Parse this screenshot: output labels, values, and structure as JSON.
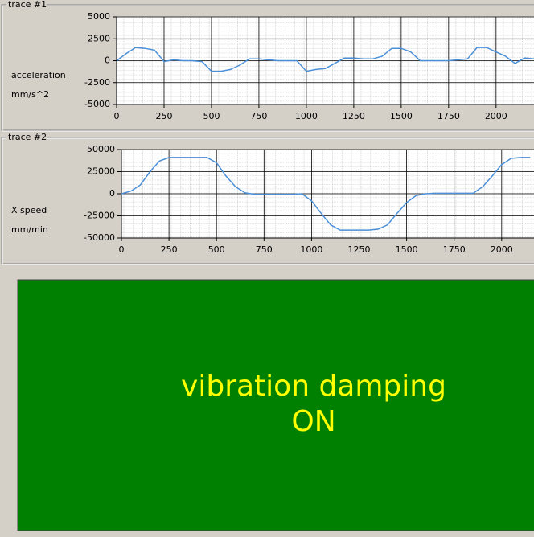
{
  "chart_data": [
    {
      "type": "line",
      "title": "trace #1",
      "ylabel": "acceleration",
      "yunit": "mm/s^2",
      "x": [
        0,
        50,
        100,
        150,
        200,
        250,
        300,
        350,
        400,
        450,
        500,
        550,
        600,
        650,
        700,
        750,
        800,
        850,
        900,
        950,
        1000,
        1050,
        1100,
        1150,
        1200,
        1250,
        1300,
        1350,
        1400,
        1450,
        1500,
        1550,
        1600,
        1650,
        1700,
        1750,
        1800,
        1850,
        1900,
        1950,
        2000,
        2050,
        2100,
        2150,
        2200
      ],
      "series": [
        {
          "color": "#4a8fd8",
          "values": [
            0,
            800,
            1500,
            1400,
            1200,
            -100,
            100,
            0,
            0,
            -100,
            -1200,
            -1200,
            -1000,
            -500,
            200,
            200,
            100,
            0,
            0,
            0,
            -1200,
            -1000,
            -900,
            -300,
            300,
            300,
            200,
            200,
            500,
            1400,
            1400,
            1000,
            0,
            0,
            0,
            0,
            100,
            200,
            1500,
            1500,
            1000,
            500,
            -300,
            300,
            200
          ]
        }
      ],
      "xlim": [
        0,
        2200
      ],
      "xticks": [
        0,
        250,
        500,
        750,
        1000,
        1250,
        1500,
        1750,
        2000
      ],
      "ylim": [
        -5000,
        5000
      ],
      "yticks": [
        5000,
        2500,
        0,
        -2500,
        -5000
      ],
      "grid": true
    },
    {
      "type": "line",
      "title": "trace #2",
      "ylabel": "X speed",
      "yunit": "mm/min",
      "x": [
        0,
        50,
        100,
        150,
        200,
        250,
        300,
        350,
        400,
        450,
        500,
        550,
        600,
        650,
        700,
        750,
        800,
        850,
        900,
        950,
        1000,
        1050,
        1100,
        1150,
        1200,
        1250,
        1300,
        1350,
        1400,
        1450,
        1500,
        1550,
        1600,
        1650,
        1700,
        1750,
        1800,
        1850,
        1900,
        1950,
        2000,
        2050,
        2100,
        2150
      ],
      "series": [
        {
          "color": "#4a8fd8",
          "values": [
            0,
            3000,
            10000,
            25000,
            37000,
            41000,
            41000,
            41000,
            41000,
            41000,
            35000,
            20000,
            8000,
            1000,
            -500,
            -500,
            -500,
            -500,
            -500,
            0,
            -8000,
            -22000,
            -35000,
            -41000,
            -41000,
            -41000,
            -41000,
            -40000,
            -35000,
            -22000,
            -10000,
            -2000,
            0,
            500,
            500,
            500,
            500,
            500,
            8000,
            20000,
            33000,
            40000,
            41000,
            41000
          ]
        }
      ],
      "xlim": [
        0,
        2170
      ],
      "xticks": [
        0,
        250,
        500,
        750,
        1000,
        1250,
        1500,
        1750,
        2000
      ],
      "ylim": [
        -50000,
        50000
      ],
      "yticks": [
        50000,
        25000,
        0,
        -25000,
        -50000
      ],
      "grid": true
    }
  ],
  "status": {
    "line1": "vibration damping",
    "line2": "ON"
  }
}
